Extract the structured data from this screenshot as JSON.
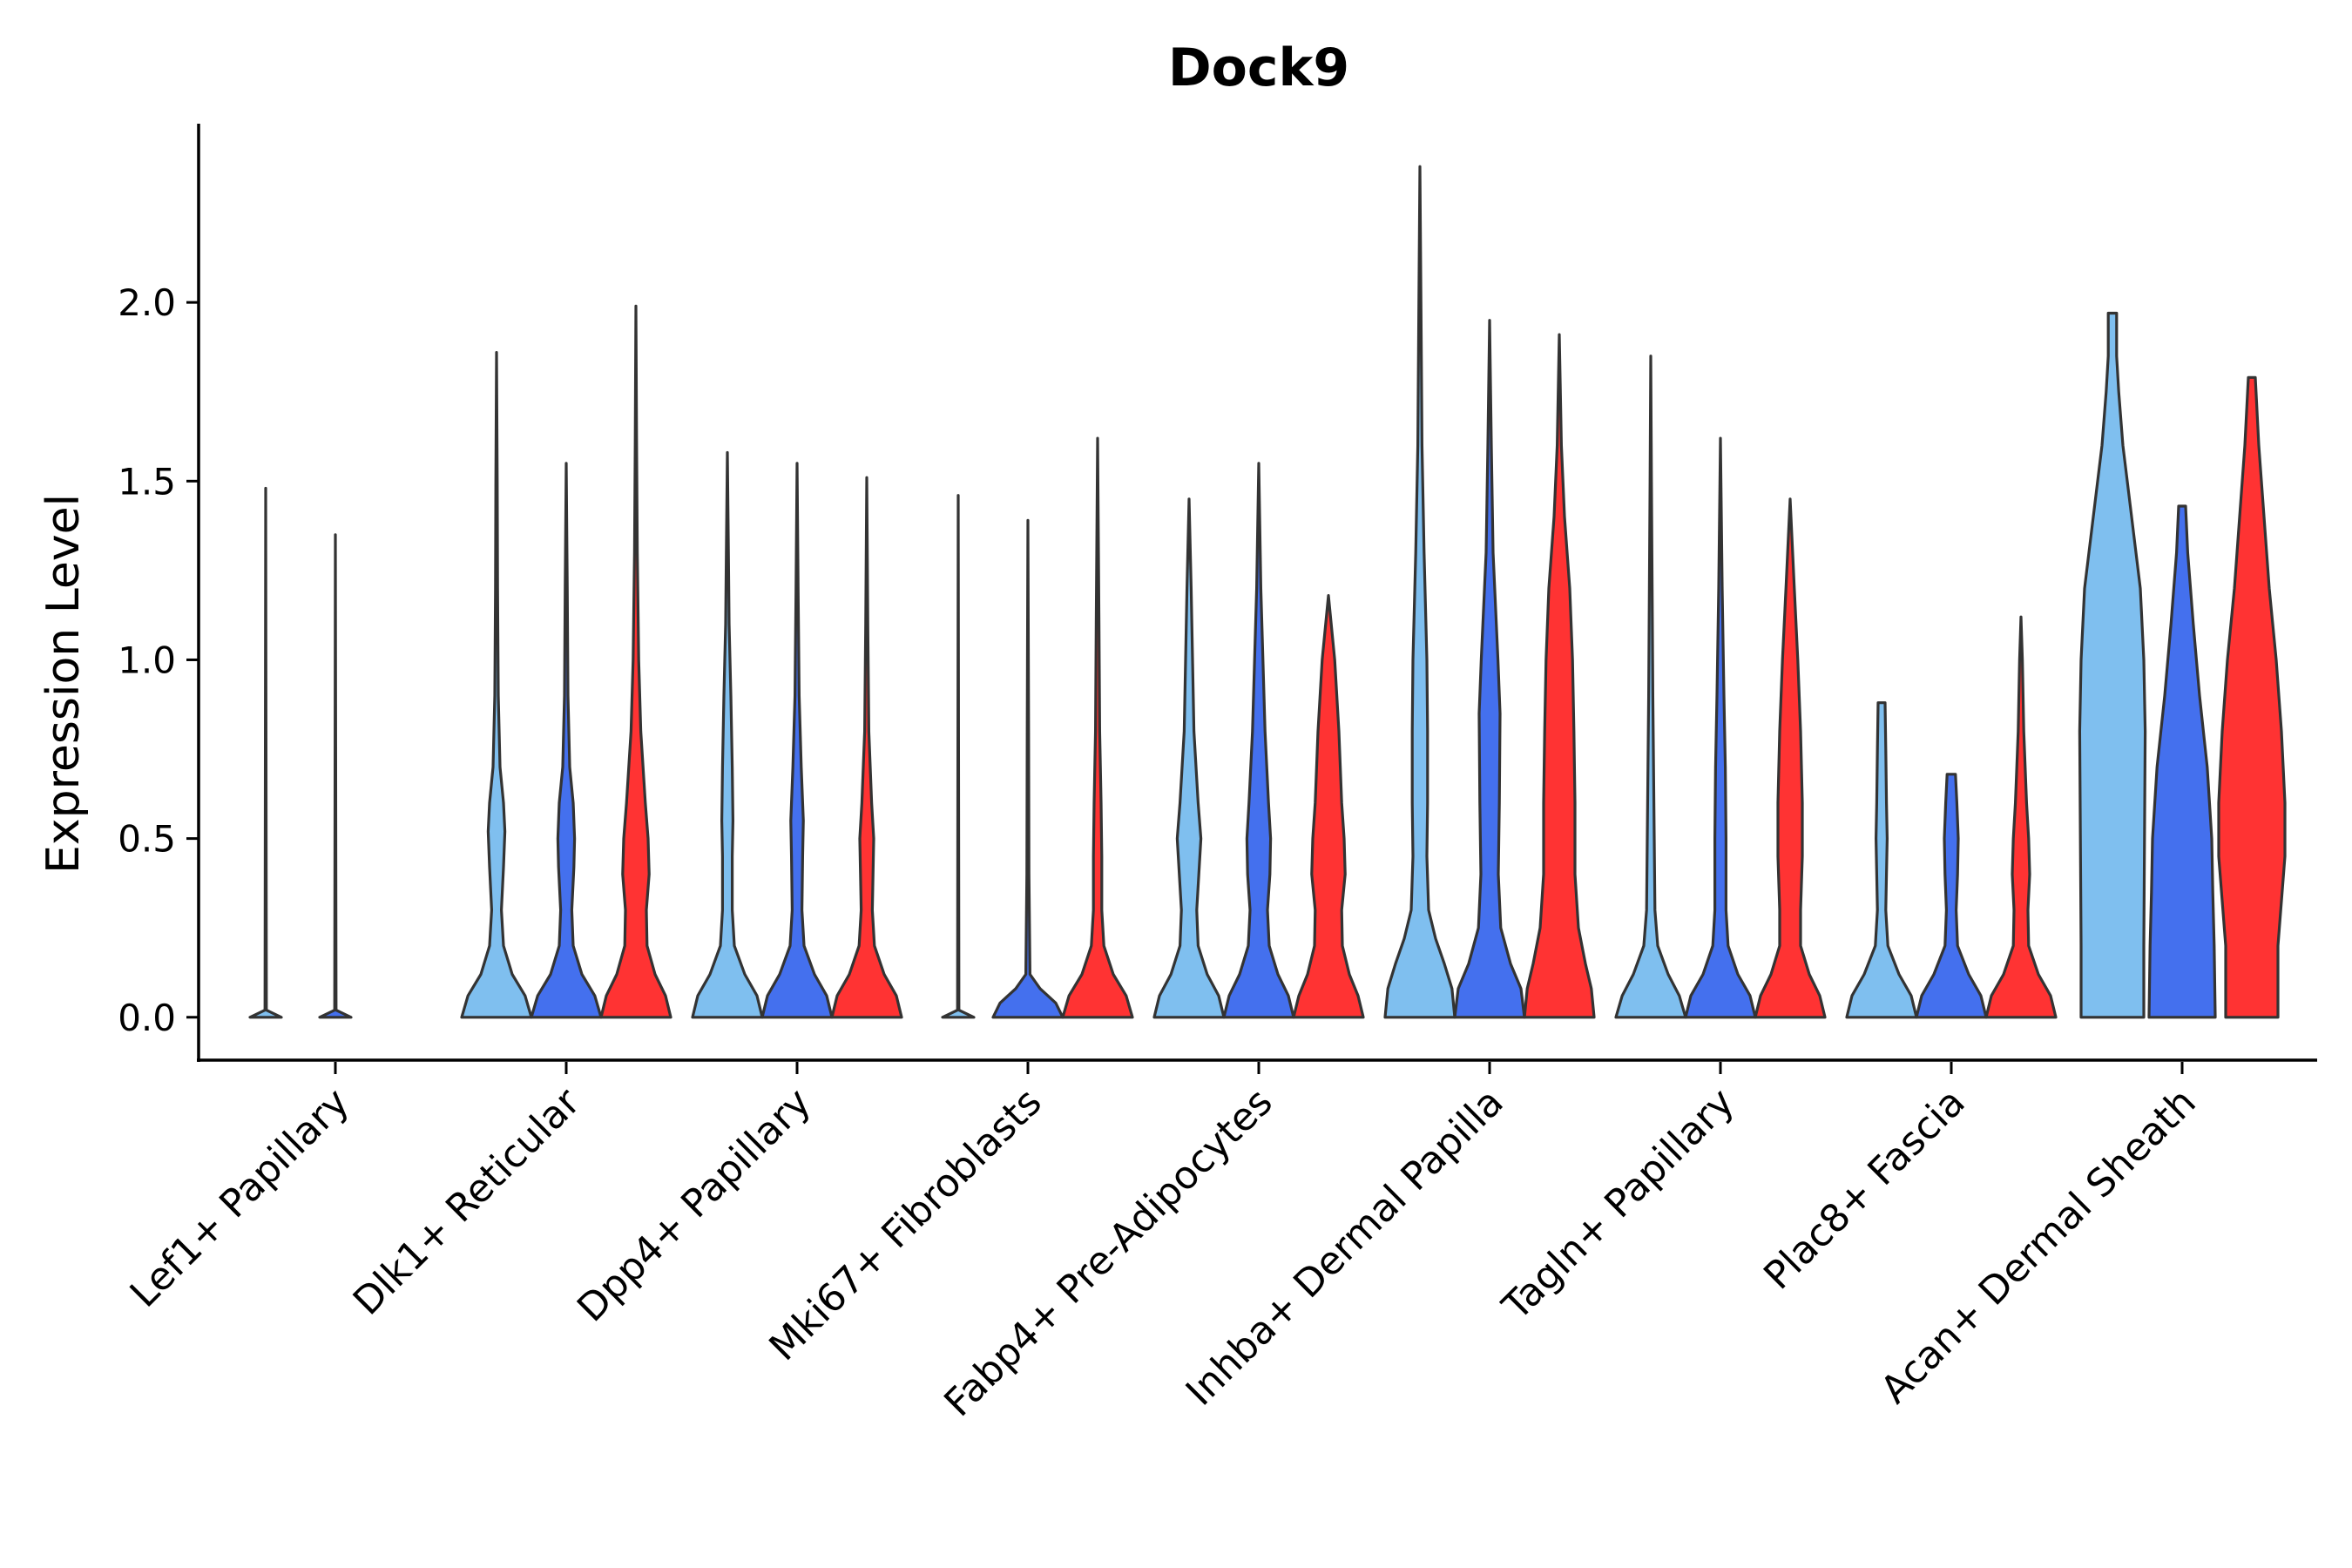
{
  "chart_data": {
    "type": "violin",
    "title": "Dock9",
    "xlabel": "",
    "ylabel": "Expression Level",
    "ylim": [
      -0.12,
      2.5
    ],
    "yticks": [
      0.0,
      0.5,
      1.0,
      1.5,
      2.0
    ],
    "ytick_labels": [
      "0.0",
      "0.5",
      "1.0",
      "1.5",
      "2.0"
    ],
    "grid": false,
    "legend": "none",
    "colors": {
      "group_1": "#7FBFEF",
      "group_2": "#4470EE",
      "group_3": "#FF3333"
    },
    "categories": [
      "Lef1+ Papillary",
      "Dlk1+ Reticular",
      "Dpp4+ Papillary",
      "Mki67+ Fibroblasts",
      "Fabp4+ Pre-Adipocytes",
      "Inhba+ Dermal Papilla",
      "Tagln+ Papillary",
      "Plac8+ Fascia",
      "Acan+ Dermal Sheath"
    ],
    "violins": [
      {
        "category": "Lef1+ Papillary",
        "group": "group_1",
        "max": 1.48,
        "profile": [
          [
            0,
            0.45
          ],
          [
            0.02,
            0.02
          ],
          [
            1.48,
            0
          ]
        ]
      },
      {
        "category": "Lef1+ Papillary",
        "group": "group_2",
        "max": 1.35,
        "profile": [
          [
            0,
            0.45
          ],
          [
            0.02,
            0.02
          ],
          [
            1.35,
            0
          ]
        ]
      },
      {
        "category": "Dlk1+ Reticular",
        "group": "group_1",
        "max": 1.86,
        "profile": [
          [
            0,
            1
          ],
          [
            0.06,
            0.82
          ],
          [
            0.12,
            0.45
          ],
          [
            0.2,
            0.2
          ],
          [
            0.3,
            0.14
          ],
          [
            0.42,
            0.2
          ],
          [
            0.52,
            0.24
          ],
          [
            0.6,
            0.2
          ],
          [
            0.7,
            0.1
          ],
          [
            0.9,
            0.05
          ],
          [
            1.2,
            0.03
          ],
          [
            1.5,
            0.02
          ],
          [
            1.86,
            0
          ]
        ]
      },
      {
        "category": "Dlk1+ Reticular",
        "group": "group_2",
        "max": 1.55,
        "profile": [
          [
            0,
            1
          ],
          [
            0.06,
            0.82
          ],
          [
            0.12,
            0.45
          ],
          [
            0.2,
            0.2
          ],
          [
            0.3,
            0.16
          ],
          [
            0.42,
            0.22
          ],
          [
            0.5,
            0.24
          ],
          [
            0.6,
            0.2
          ],
          [
            0.7,
            0.1
          ],
          [
            0.9,
            0.05
          ],
          [
            1.2,
            0.03
          ],
          [
            1.55,
            0
          ]
        ]
      },
      {
        "category": "Dlk1+ Reticular",
        "group": "group_3",
        "max": 1.99,
        "profile": [
          [
            0,
            1
          ],
          [
            0.06,
            0.85
          ],
          [
            0.12,
            0.55
          ],
          [
            0.2,
            0.32
          ],
          [
            0.3,
            0.3
          ],
          [
            0.4,
            0.38
          ],
          [
            0.5,
            0.35
          ],
          [
            0.6,
            0.27
          ],
          [
            0.8,
            0.14
          ],
          [
            1.0,
            0.08
          ],
          [
            1.3,
            0.04
          ],
          [
            1.6,
            0.02
          ],
          [
            1.99,
            0
          ]
        ]
      },
      {
        "category": "Dpp4+ Papillary",
        "group": "group_1",
        "max": 1.58,
        "profile": [
          [
            0,
            1
          ],
          [
            0.06,
            0.85
          ],
          [
            0.12,
            0.5
          ],
          [
            0.2,
            0.2
          ],
          [
            0.3,
            0.14
          ],
          [
            0.45,
            0.14
          ],
          [
            0.55,
            0.16
          ],
          [
            0.7,
            0.14
          ],
          [
            0.9,
            0.1
          ],
          [
            1.1,
            0.05
          ],
          [
            1.3,
            0.03
          ],
          [
            1.58,
            0
          ]
        ]
      },
      {
        "category": "Dpp4+ Papillary",
        "group": "group_2",
        "max": 1.55,
        "profile": [
          [
            0,
            1
          ],
          [
            0.06,
            0.85
          ],
          [
            0.12,
            0.5
          ],
          [
            0.2,
            0.2
          ],
          [
            0.3,
            0.14
          ],
          [
            0.45,
            0.16
          ],
          [
            0.55,
            0.18
          ],
          [
            0.7,
            0.12
          ],
          [
            0.9,
            0.06
          ],
          [
            1.2,
            0.03
          ],
          [
            1.55,
            0
          ]
        ]
      },
      {
        "category": "Dpp4+ Papillary",
        "group": "group_3",
        "max": 1.51,
        "profile": [
          [
            0,
            1
          ],
          [
            0.06,
            0.85
          ],
          [
            0.12,
            0.5
          ],
          [
            0.2,
            0.22
          ],
          [
            0.3,
            0.16
          ],
          [
            0.4,
            0.18
          ],
          [
            0.5,
            0.2
          ],
          [
            0.6,
            0.14
          ],
          [
            0.8,
            0.06
          ],
          [
            1.1,
            0.03
          ],
          [
            1.51,
            0
          ]
        ]
      },
      {
        "category": "Mki67+ Fibroblasts",
        "group": "group_1",
        "max": 1.46,
        "profile": [
          [
            0,
            0.45
          ],
          [
            0.02,
            0.02
          ],
          [
            1.46,
            0
          ]
        ]
      },
      {
        "category": "Mki67+ Fibroblasts",
        "group": "group_2",
        "max": 1.39,
        "profile": [
          [
            0,
            1
          ],
          [
            0.04,
            0.8
          ],
          [
            0.08,
            0.35
          ],
          [
            0.12,
            0.06
          ],
          [
            0.4,
            0.03
          ],
          [
            0.8,
            0.02
          ],
          [
            1.39,
            0
          ]
        ]
      },
      {
        "category": "Mki67+ Fibroblasts",
        "group": "group_3",
        "max": 1.62,
        "profile": [
          [
            0,
            1
          ],
          [
            0.06,
            0.82
          ],
          [
            0.12,
            0.45
          ],
          [
            0.2,
            0.18
          ],
          [
            0.3,
            0.12
          ],
          [
            0.45,
            0.12
          ],
          [
            0.6,
            0.1
          ],
          [
            0.8,
            0.06
          ],
          [
            1.1,
            0.04
          ],
          [
            1.62,
            0
          ]
        ]
      },
      {
        "category": "Fabp4+ Pre-Adipocytes",
        "group": "group_1",
        "max": 1.45,
        "profile": [
          [
            0,
            1
          ],
          [
            0.06,
            0.85
          ],
          [
            0.12,
            0.52
          ],
          [
            0.2,
            0.26
          ],
          [
            0.3,
            0.22
          ],
          [
            0.4,
            0.28
          ],
          [
            0.5,
            0.34
          ],
          [
            0.6,
            0.26
          ],
          [
            0.8,
            0.14
          ],
          [
            1.0,
            0.1
          ],
          [
            1.2,
            0.06
          ],
          [
            1.45,
            0
          ]
        ]
      },
      {
        "category": "Fabp4+ Pre-Adipocytes",
        "group": "group_2",
        "max": 1.55,
        "profile": [
          [
            0,
            1
          ],
          [
            0.06,
            0.85
          ],
          [
            0.12,
            0.55
          ],
          [
            0.2,
            0.3
          ],
          [
            0.3,
            0.25
          ],
          [
            0.4,
            0.32
          ],
          [
            0.5,
            0.34
          ],
          [
            0.6,
            0.28
          ],
          [
            0.8,
            0.18
          ],
          [
            1.0,
            0.12
          ],
          [
            1.2,
            0.06
          ],
          [
            1.55,
            0
          ]
        ]
      },
      {
        "category": "Fabp4+ Pre-Adipocytes",
        "group": "group_3",
        "max": 1.18,
        "profile": [
          [
            0,
            1
          ],
          [
            0.06,
            0.85
          ],
          [
            0.12,
            0.6
          ],
          [
            0.2,
            0.4
          ],
          [
            0.3,
            0.38
          ],
          [
            0.4,
            0.48
          ],
          [
            0.5,
            0.45
          ],
          [
            0.6,
            0.38
          ],
          [
            0.8,
            0.3
          ],
          [
            1.0,
            0.18
          ],
          [
            1.18,
            0
          ]
        ]
      },
      {
        "category": "Inhba+ Dermal Papilla",
        "group": "group_1",
        "max": 2.38,
        "profile": [
          [
            0,
            1
          ],
          [
            0.08,
            0.92
          ],
          [
            0.15,
            0.7
          ],
          [
            0.22,
            0.45
          ],
          [
            0.3,
            0.25
          ],
          [
            0.45,
            0.2
          ],
          [
            0.6,
            0.22
          ],
          [
            0.8,
            0.22
          ],
          [
            1.0,
            0.2
          ],
          [
            1.3,
            0.12
          ],
          [
            1.6,
            0.06
          ],
          [
            2.0,
            0.03
          ],
          [
            2.38,
            0
          ]
        ]
      },
      {
        "category": "Inhba+ Dermal Papilla",
        "group": "group_2",
        "max": 1.95,
        "profile": [
          [
            0,
            1
          ],
          [
            0.08,
            0.9
          ],
          [
            0.15,
            0.6
          ],
          [
            0.25,
            0.32
          ],
          [
            0.4,
            0.25
          ],
          [
            0.6,
            0.28
          ],
          [
            0.85,
            0.3
          ],
          [
            1.0,
            0.24
          ],
          [
            1.3,
            0.1
          ],
          [
            1.6,
            0.05
          ],
          [
            1.95,
            0
          ]
        ]
      },
      {
        "category": "Inhba+ Dermal Papilla",
        "group": "group_3",
        "max": 1.91,
        "profile": [
          [
            0,
            1
          ],
          [
            0.08,
            0.92
          ],
          [
            0.15,
            0.75
          ],
          [
            0.25,
            0.55
          ],
          [
            0.4,
            0.45
          ],
          [
            0.6,
            0.45
          ],
          [
            0.8,
            0.42
          ],
          [
            1.0,
            0.38
          ],
          [
            1.2,
            0.3
          ],
          [
            1.4,
            0.15
          ],
          [
            1.6,
            0.06
          ],
          [
            1.91,
            0
          ]
        ]
      },
      {
        "category": "Tagln+ Papillary",
        "group": "group_1",
        "max": 1.85,
        "profile": [
          [
            0,
            1
          ],
          [
            0.06,
            0.82
          ],
          [
            0.12,
            0.5
          ],
          [
            0.2,
            0.2
          ],
          [
            0.3,
            0.12
          ],
          [
            0.5,
            0.1
          ],
          [
            0.7,
            0.08
          ],
          [
            0.9,
            0.06
          ],
          [
            1.2,
            0.04
          ],
          [
            1.5,
            0.02
          ],
          [
            1.85,
            0
          ]
        ]
      },
      {
        "category": "Tagln+ Papillary",
        "group": "group_2",
        "max": 1.62,
        "profile": [
          [
            0,
            1
          ],
          [
            0.06,
            0.85
          ],
          [
            0.12,
            0.5
          ],
          [
            0.2,
            0.22
          ],
          [
            0.3,
            0.16
          ],
          [
            0.5,
            0.16
          ],
          [
            0.7,
            0.14
          ],
          [
            0.9,
            0.1
          ],
          [
            1.2,
            0.05
          ],
          [
            1.62,
            0
          ]
        ]
      },
      {
        "category": "Tagln+ Papillary",
        "group": "group_3",
        "max": 1.45,
        "profile": [
          [
            0,
            1
          ],
          [
            0.06,
            0.85
          ],
          [
            0.12,
            0.55
          ],
          [
            0.2,
            0.3
          ],
          [
            0.3,
            0.3
          ],
          [
            0.45,
            0.35
          ],
          [
            0.6,
            0.35
          ],
          [
            0.8,
            0.3
          ],
          [
            1.0,
            0.22
          ],
          [
            1.2,
            0.12
          ],
          [
            1.45,
            0
          ]
        ]
      },
      {
        "category": "Plac8+ Fascia",
        "group": "group_1",
        "max": 0.88,
        "profile": [
          [
            0,
            1
          ],
          [
            0.06,
            0.85
          ],
          [
            0.12,
            0.5
          ],
          [
            0.2,
            0.18
          ],
          [
            0.3,
            0.12
          ],
          [
            0.4,
            0.14
          ],
          [
            0.5,
            0.16
          ],
          [
            0.6,
            0.14
          ],
          [
            0.75,
            0.12
          ],
          [
            0.88,
            0.1
          ]
        ]
      },
      {
        "category": "Plac8+ Fascia",
        "group": "group_2",
        "max": 0.68,
        "profile": [
          [
            0,
            1
          ],
          [
            0.06,
            0.85
          ],
          [
            0.12,
            0.5
          ],
          [
            0.2,
            0.18
          ],
          [
            0.3,
            0.14
          ],
          [
            0.4,
            0.18
          ],
          [
            0.5,
            0.2
          ],
          [
            0.6,
            0.16
          ],
          [
            0.68,
            0.12
          ]
        ]
      },
      {
        "category": "Plac8+ Fascia",
        "group": "group_3",
        "max": 1.12,
        "profile": [
          [
            0,
            1
          ],
          [
            0.06,
            0.85
          ],
          [
            0.12,
            0.5
          ],
          [
            0.2,
            0.22
          ],
          [
            0.3,
            0.2
          ],
          [
            0.4,
            0.25
          ],
          [
            0.5,
            0.22
          ],
          [
            0.6,
            0.16
          ],
          [
            0.8,
            0.08
          ],
          [
            1.0,
            0.04
          ],
          [
            1.12,
            0
          ]
        ]
      },
      {
        "category": "Acan+ Dermal Sheath",
        "group": "group_1",
        "max": 1.97,
        "profile": [
          [
            0,
            0.9
          ],
          [
            0.2,
            0.9
          ],
          [
            0.5,
            0.92
          ],
          [
            0.8,
            0.94
          ],
          [
            1.0,
            0.9
          ],
          [
            1.2,
            0.8
          ],
          [
            1.4,
            0.55
          ],
          [
            1.6,
            0.3
          ],
          [
            1.75,
            0.18
          ],
          [
            1.85,
            0.12
          ],
          [
            1.97,
            0.12
          ]
        ]
      },
      {
        "category": "Acan+ Dermal Sheath",
        "group": "group_2",
        "max": 1.43,
        "profile": [
          [
            0,
            0.95
          ],
          [
            0.2,
            0.92
          ],
          [
            0.35,
            0.88
          ],
          [
            0.5,
            0.85
          ],
          [
            0.7,
            0.72
          ],
          [
            0.9,
            0.5
          ],
          [
            1.1,
            0.32
          ],
          [
            1.3,
            0.16
          ],
          [
            1.43,
            0.1
          ]
        ]
      },
      {
        "category": "Acan+ Dermal Sheath",
        "group": "group_3",
        "max": 1.79,
        "profile": [
          [
            0,
            0.75
          ],
          [
            0.2,
            0.75
          ],
          [
            0.45,
            0.95
          ],
          [
            0.6,
            0.95
          ],
          [
            0.8,
            0.85
          ],
          [
            1.0,
            0.7
          ],
          [
            1.2,
            0.5
          ],
          [
            1.4,
            0.35
          ],
          [
            1.6,
            0.2
          ],
          [
            1.79,
            0.1
          ]
        ]
      }
    ]
  }
}
